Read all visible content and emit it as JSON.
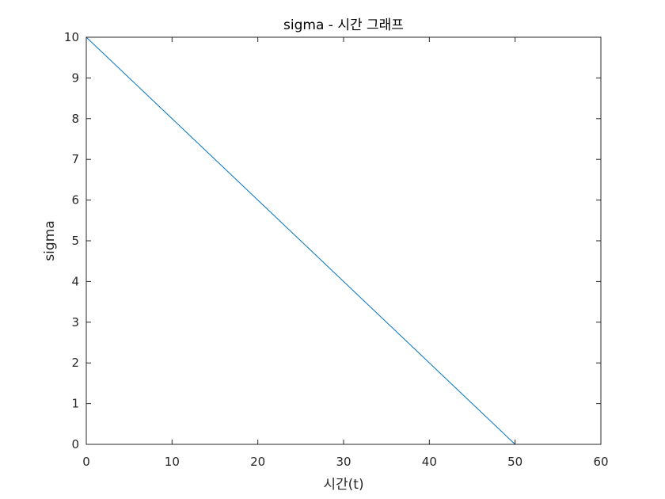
{
  "chart_data": {
    "type": "line",
    "title": "sigma - 시간 그래프",
    "xlabel": "시간(t)",
    "ylabel": "sigma",
    "xlim": [
      0,
      60
    ],
    "ylim": [
      0,
      10
    ],
    "xticks": [
      0,
      10,
      20,
      30,
      40,
      50,
      60
    ],
    "yticks": [
      0,
      1,
      2,
      3,
      4,
      5,
      6,
      7,
      8,
      9,
      10
    ],
    "grid": false,
    "legend": "none",
    "series": [
      {
        "color": "#0072BD",
        "x": [
          0,
          50
        ],
        "y": [
          10,
          0
        ]
      }
    ]
  }
}
